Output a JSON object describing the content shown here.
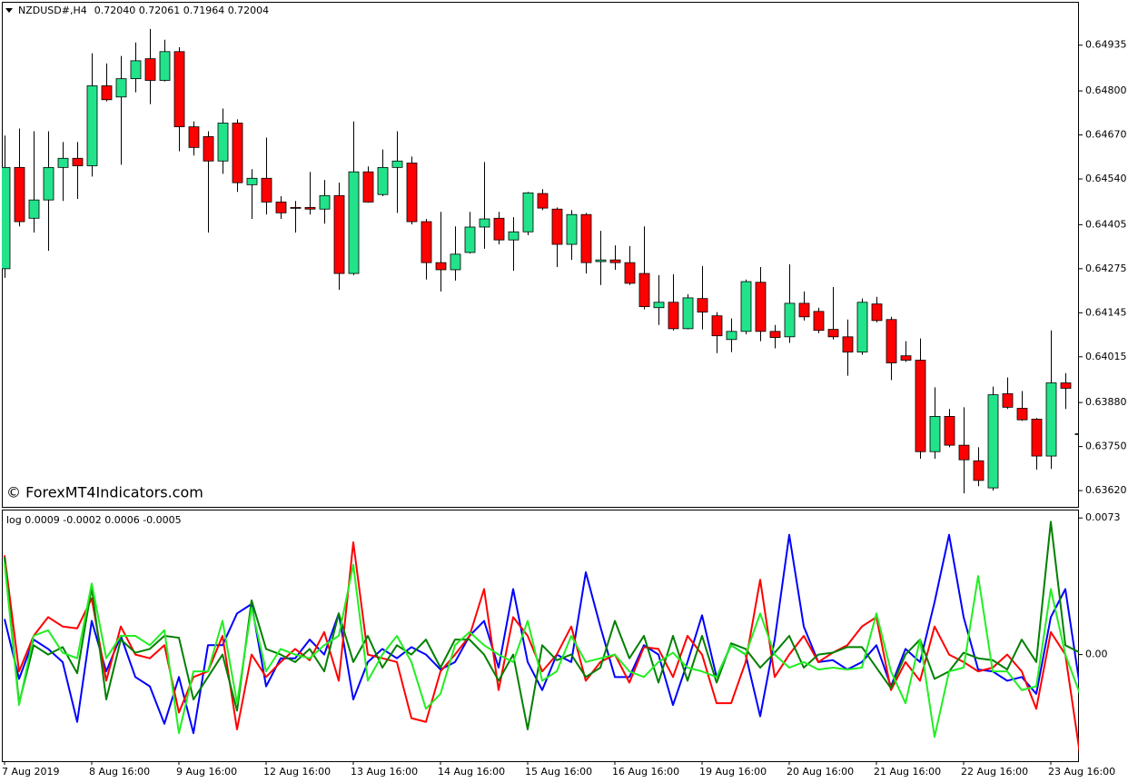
{
  "chart_data": [
    {
      "type": "candlestick",
      "title": "NZDUSD#,H4",
      "subtitle": "0.72040 0.72061 0.71964 0.72004",
      "annotation": "© ForexMT4Indicators.com",
      "up_color": "#22e38a",
      "down_color": "#ff0000",
      "ylim": [
        0.63572,
        0.65063
      ],
      "yticks": [
        0.64935,
        {
          "value": 0.648,
          "label": "0.64800"
        },
        {
          "value": 0.6467,
          "label": "0.64670"
        },
        {
          "value": 0.6454,
          "label": "0.64540"
        },
        0.64405,
        0.64275,
        0.64145,
        0.64015,
        {
          "value": 0.6388,
          "label": "0.63880"
        },
        {
          "value": 0.6375,
          "label": "0.63750"
        },
        {
          "value": 0.6362,
          "label": "0.63620"
        }
      ],
      "open": [
        0.64275,
        0.64574,
        0.64424,
        0.64478,
        0.64574,
        0.64601,
        0.64579,
        0.64815,
        0.64782,
        0.64836,
        0.64895,
        0.64831,
        0.64916,
        0.64694,
        0.64665,
        0.64593,
        0.64705,
        0.64523,
        0.64542,
        0.64472,
        0.64456,
        0.64456,
        0.64451,
        0.64491,
        0.64261,
        0.64561,
        0.64494,
        0.64574,
        0.64587,
        0.64414,
        0.64293,
        0.64272,
        0.64323,
        0.64398,
        0.64424,
        0.6436,
        0.64384,
        0.64497,
        0.64451,
        0.64347,
        0.64435,
        0.64296,
        0.64301,
        0.64293,
        0.64261,
        0.6416,
        0.64176,
        0.64098,
        0.64187,
        0.64136,
        0.64066,
        0.6409,
        0.64235,
        0.6409,
        0.64074,
        0.64173,
        0.64149,
        0.64096,
        0.64074,
        0.64029,
        0.64171,
        0.64125,
        0.64018,
        0.64005,
        0.63735,
        0.63839,
        0.63754,
        0.63708,
        0.63628,
        0.63906,
        0.63863,
        0.63831,
        0.63722,
        0.63938,
        0.63786
      ],
      "high": [
        0.64668,
        0.64689,
        0.64681,
        0.64681,
        0.64649,
        0.64649,
        0.64911,
        0.64881,
        0.64903,
        0.64943,
        0.64983,
        0.64951,
        0.64929,
        0.6471,
        0.64681,
        0.64748,
        0.64716,
        0.64569,
        0.64662,
        0.64489,
        0.64475,
        0.64561,
        0.64537,
        0.64529,
        0.6471,
        0.64577,
        0.64627,
        0.64681,
        0.64606,
        0.64422,
        0.64443,
        0.644,
        0.64443,
        0.6459,
        0.64443,
        0.64427,
        0.64502,
        0.6451,
        0.64456,
        0.64448,
        0.6444,
        0.64387,
        0.64344,
        0.64342,
        0.644,
        0.64256,
        0.64259,
        0.642,
        0.64283,
        0.64147,
        0.64128,
        0.64243,
        0.6428,
        0.64109,
        0.64288,
        0.64208,
        0.6416,
        0.64221,
        0.64125,
        0.64187,
        0.64192,
        0.64133,
        0.64061,
        0.64069,
        0.63925,
        0.63861,
        0.63866,
        0.63748,
        0.63927,
        0.63954,
        0.63914,
        0.63834,
        0.64093,
        0.63967,
        0.63839
      ],
      "low": [
        0.64248,
        0.644,
        0.64382,
        0.64328,
        0.64475,
        0.64481,
        0.64547,
        0.64769,
        0.64582,
        0.64796,
        0.64761,
        0.64828,
        0.64622,
        0.64609,
        0.64382,
        0.64555,
        0.64502,
        0.64422,
        0.64435,
        0.64422,
        0.64382,
        0.64435,
        0.64408,
        0.64213,
        0.64256,
        0.6447,
        0.64489,
        0.6444,
        0.64406,
        0.64243,
        0.64208,
        0.6424,
        0.6432,
        0.64334,
        0.64347,
        0.64269,
        0.64374,
        0.64448,
        0.6428,
        0.64301,
        0.64261,
        0.64227,
        0.64272,
        0.64227,
        0.64155,
        0.64109,
        0.64093,
        0.64096,
        0.64096,
        0.64026,
        0.64029,
        0.64082,
        0.64061,
        0.6404,
        0.64056,
        0.64122,
        0.64085,
        0.64066,
        0.63959,
        0.64021,
        0.64117,
        0.63946,
        0.64,
        0.63714,
        0.63714,
        0.63748,
        0.63612,
        0.63633,
        0.6362,
        0.63861,
        0.63826,
        0.63682,
        0.63684,
        0.63861,
        0.63748
      ],
      "close": [
        0.64574,
        0.64414,
        0.64478,
        0.64574,
        0.64601,
        0.64579,
        0.64815,
        0.64774,
        0.64836,
        0.64889,
        0.64831,
        0.64916,
        0.64694,
        0.64633,
        0.64593,
        0.64705,
        0.64529,
        0.64542,
        0.64472,
        0.6444,
        0.64454,
        0.64451,
        0.64491,
        0.64261,
        0.64561,
        0.64472,
        0.64574,
        0.64593,
        0.64414,
        0.64293,
        0.64272,
        0.64318,
        0.64398,
        0.64422,
        0.6436,
        0.64384,
        0.64499,
        0.64454,
        0.64347,
        0.64435,
        0.64293,
        0.64301,
        0.64293,
        0.64232,
        0.64163,
        0.64176,
        0.64098,
        0.64189,
        0.64147,
        0.64077,
        0.6409,
        0.64237,
        0.6409,
        0.64072,
        0.64173,
        0.64133,
        0.64093,
        0.64074,
        0.64029,
        0.64176,
        0.64122,
        0.63997,
        0.64005,
        0.63735,
        0.63839,
        0.63754,
        0.63711,
        0.6365,
        0.63903,
        0.63866,
        0.63829,
        0.63722,
        0.63938,
        0.63922,
        0.63788
      ]
    },
    {
      "type": "line",
      "title": "log 0.0009 -0.0002 0.0006 -0.0005",
      "ylim": [
        -0.0057,
        0.0077
      ],
      "yticks": [
        0.0073,
        {
          "value": 0,
          "label": "0.00"
        }
      ],
      "categories": [
        "7 Aug 2019",
        null,
        null,
        null,
        null,
        null,
        "8 Aug 16:00",
        null,
        null,
        null,
        null,
        null,
        "9 Aug 16:00",
        null,
        null,
        null,
        null,
        null,
        "12 Aug 16:00",
        null,
        null,
        null,
        null,
        null,
        "13 Aug 16:00",
        null,
        null,
        null,
        null,
        null,
        "14 Aug 16:00",
        null,
        null,
        null,
        null,
        null,
        "15 Aug 16:00",
        null,
        null,
        null,
        null,
        null,
        "16 Aug 16:00",
        null,
        null,
        null,
        null,
        null,
        "19 Aug 16:00",
        null,
        null,
        null,
        null,
        null,
        "20 Aug 16:00",
        null,
        null,
        null,
        null,
        null,
        "21 Aug 16:00",
        null,
        null,
        null,
        null,
        null,
        "22 Aug 16:00",
        null,
        null,
        null,
        null,
        null,
        "23 Aug 16:00",
        null,
        null
      ],
      "series": [
        {
          "color": "#0000ff",
          "values": [
            0.0019,
            -0.0013,
            0.0008,
            0.0003,
            -0.0004,
            -0.0036,
            0.0018,
            -0.0009,
            0.001,
            -0.0012,
            -0.0017,
            -0.0037,
            -0.0012,
            -0.0042,
            0.0005,
            0.0005,
            0.0022,
            0.0027,
            -0.0017,
            -0.0002,
            -0.0002,
            0.0008,
            0,
            0.0022,
            -0.0024,
            -0.0004,
            0.0003,
            -0.0002,
            0.0004,
            0,
            -0.0008,
            -0.0004,
            0.001,
            0.0018,
            -0.0007,
            0.0035,
            -0.0004,
            -0.0019,
            0,
            -0.0004,
            0.0044,
            0.0015,
            -0.0012,
            -0.0012,
            0.0005,
            0,
            -0.0027,
            -0.0004,
            0.0021,
            -0.0012,
            0.0005,
            0,
            -0.0033,
            0.0008,
            0.0064,
            0.0015,
            -0.0004,
            -0.0003,
            -0.0008,
            -0.0004,
            0.0005,
            -0.0017,
            0.0003,
            -0.0004,
            0.0028,
            0.0064,
            0.002,
            -0.0008,
            -0.0009,
            -0.0014,
            -0.0012,
            -0.0021,
            0.002,
            0.0035,
            -0.0017
          ]
        },
        {
          "color": "#ff0000",
          "values": [
            0.0053,
            -0.0009,
            0.001,
            0.002,
            0.0015,
            0.0014,
            0.003,
            -0.0014,
            0.0015,
            0,
            -0.0002,
            0.0005,
            -0.0031,
            -0.0012,
            -0.0009,
            0.001,
            -0.004,
            0,
            -0.0012,
            -0.0004,
            0.0003,
            -0.0003,
            0.0012,
            -0.0014,
            0.006,
            0,
            -0.0002,
            -0.0004,
            -0.0034,
            -0.0036,
            -0.0009,
            0,
            0.001,
            0.0035,
            -0.0019,
            0.002,
            0.001,
            -0.0009,
            0,
            0.0015,
            -0.0014,
            -0.0004,
            0,
            -0.0015,
            0.0004,
            0.0003,
            -0.0012,
            0.001,
            0,
            -0.0026,
            -0.0026,
            -0.0004,
            0.004,
            -0.0012,
            0,
            0.001,
            -0.0004,
            0.0001,
            0.0005,
            0.0015,
            0.002,
            -0.0019,
            -0.0004,
            -0.0014,
            0.0015,
            0,
            -0.0004,
            -0.0009,
            -0.0007,
            0,
            -0.0009,
            -0.0029,
            0.0012,
            0,
            -0.0053
          ]
        },
        {
          "color": "#008000",
          "values": [
            0.0052,
            -0.0026,
            0.0005,
            0,
            0.0004,
            -0.001,
            0.0036,
            -0.0024,
            0.0008,
            0.0001,
            0.0003,
            0.001,
            0.0009,
            -0.0024,
            -0.0012,
            0,
            -0.003,
            0.0029,
            0.0003,
            0,
            -0.0004,
            0.0003,
            -0.0009,
            0.0022,
            -0.0004,
            0.001,
            -0.0007,
            0.0005,
            0,
            0.0008,
            -0.0007,
            0.0008,
            0.0008,
            0,
            -0.0014,
            0,
            -0.004,
            0.0005,
            -0.0003,
            0,
            -0.0012,
            -0.0007,
            0.0018,
            -0.0002,
            0.001,
            -0.0015,
            0.001,
            -0.0014,
            0.001,
            -0.0015,
            0.0006,
            0.0003,
            -0.0007,
            0.0001,
            0.001,
            -0.0007,
            0,
            0.0001,
            0.0004,
            0.0004,
            -0.0007,
            -0.0018,
            0,
            0.0008,
            -0.0013,
            -0.0009,
            0.0001,
            -0.0002,
            -0.0003,
            -0.0008,
            0.0008,
            -0.0004,
            0.0071,
            0.0005,
            0.0001
          ]
        },
        {
          "color": "#22ee22",
          "values": [
            0.0049,
            -0.0027,
            0.001,
            0.0013,
            0.0001,
            -0.0002,
            0.0038,
            -0.0002,
            0.001,
            0.001,
            0.0005,
            0.0013,
            -0.0042,
            -0.0009,
            -0.0009,
            0.0018,
            -0.0026,
            0.0025,
            -0.0009,
            0.0003,
            0,
            -0.0002,
            0.0005,
            0.001,
            0.0048,
            -0.0014,
            0,
            0.001,
            -0.0004,
            -0.0029,
            -0.0021,
            0.0005,
            0.0012,
            0.0005,
            0,
            -0.0004,
            0.0018,
            -0.0014,
            -0.0009,
            0.001,
            -0.0004,
            -0.0002,
            0,
            -0.0009,
            -0.0012,
            -0.0004,
            0.0001,
            -0.0007,
            -0.0009,
            -0.0012,
            0.0005,
            0,
            0.0022,
            0,
            -0.0007,
            -0.0004,
            -0.0008,
            -0.0007,
            -0.0008,
            -0.0007,
            0.0022,
            -0.0009,
            -0.0026,
            0.0008,
            -0.0044,
            -0.0009,
            -0.0007,
            0.0042,
            -0.0009,
            -0.0009,
            -0.0019,
            -0.0017,
            0.0035,
            0,
            -0.0021
          ]
        }
      ]
    }
  ]
}
